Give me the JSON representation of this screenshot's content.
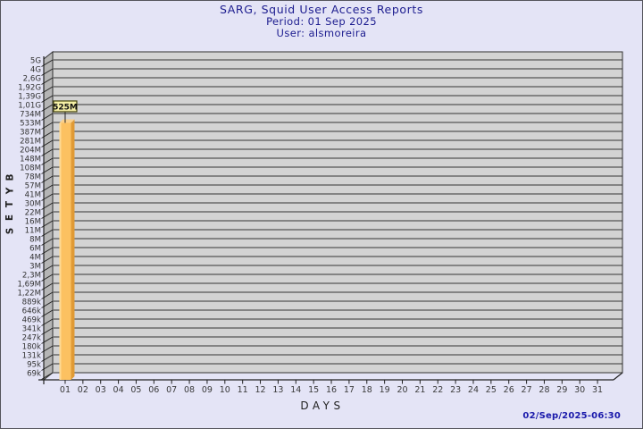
{
  "header": {
    "title": "SARG, Squid User Access Reports",
    "period": "Period: 01 Sep 2025",
    "user": "User: alsmoreira",
    "text_color": "#1c1c8f"
  },
  "footer": {
    "generated": "02/Sep/2025-06:30",
    "text_color": "#1a1aab"
  },
  "chart_data": {
    "type": "bar",
    "title": "SARG, Squid User Access Reports",
    "period": "01 Sep 2025",
    "user": "alsmoreira",
    "xlabel": "DAYS",
    "ylabel": "BYTES",
    "y_scale": "log",
    "grid": true,
    "legend": false,
    "x_tick_labels": [
      "01",
      "02",
      "03",
      "04",
      "05",
      "06",
      "07",
      "08",
      "09",
      "10",
      "11",
      "12",
      "13",
      "14",
      "15",
      "16",
      "17",
      "18",
      "19",
      "20",
      "21",
      "22",
      "23",
      "24",
      "25",
      "26",
      "27",
      "28",
      "29",
      "30",
      "31"
    ],
    "y_tick_labels": [
      "5G",
      "4G",
      "2,6G",
      "1,92G",
      "1,39G",
      "1,01G",
      "734M",
      "533M",
      "387M",
      "281M",
      "204M",
      "148M",
      "108M",
      "78M",
      "57M",
      "41M",
      "30M",
      "22M",
      "16M",
      "11M",
      "8M",
      "6M",
      "4M",
      "3M",
      "2,3M",
      "1,69M",
      "1,22M",
      "889k",
      "646k",
      "469k",
      "341k",
      "247k",
      "180k",
      "131k",
      "95k",
      "69k"
    ],
    "bars": [
      {
        "day": "01",
        "value": "525M"
      }
    ],
    "colors": {
      "plot_bg": "#d3d3d3",
      "grid": "#6a6a6a",
      "wall": "#b5b5b5",
      "axis": "#2f2f2f",
      "bar_face": "#fcc161",
      "bar_highlight": "#fed993",
      "bar_side": "#e09a35",
      "bar_top": "#fbd08a",
      "annotation_bg": "#f5f0a6",
      "annotation_border": "#45450d"
    }
  }
}
